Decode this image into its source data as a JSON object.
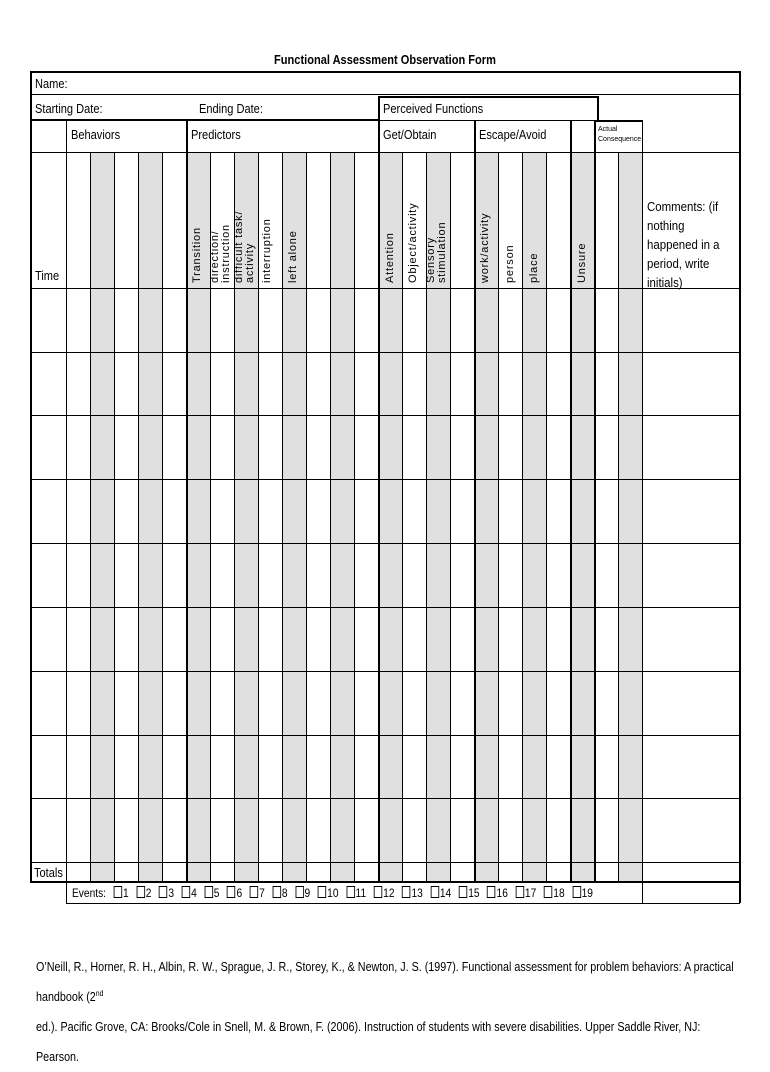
{
  "title": "Functional Assessment Observation Form",
  "name_label": "Name:",
  "starting_date_label": "Starting Date:",
  "ending_date_label": "Ending Date:",
  "perceived_functions_label": "Perceived Functions",
  "headers": {
    "behaviors": "Behaviors",
    "predictors": "Predictors",
    "get_obtain": "Get/Obtain",
    "escape_avoid": "Escape/Avoid",
    "actual_consequence": "Actual Consequence",
    "time": "Time",
    "comments": "Comments: (if nothing happened in a period, write initials)",
    "totals": "Totals"
  },
  "predictor_labels": [
    "Transition",
    "direction/\ninstruction",
    "difficult task/\nactivity",
    "interruption",
    "left alone"
  ],
  "get_labels": [
    "Attention",
    "Object/activity",
    "Sensory\nstimulation"
  ],
  "escape_labels": [
    "work/activity",
    "person",
    "place"
  ],
  "unsure_label": "Unsure",
  "events_label": "Events:",
  "events": [
    "1",
    "2",
    "3",
    "4",
    "5",
    "6",
    "7",
    "8",
    "9",
    "10",
    "11",
    "12",
    "13",
    "14",
    "15",
    "16",
    "17",
    "18",
    "19"
  ],
  "citation_line1": "O’Neill, R., Horner, R. H., Albin, R. W., Sprague, J. R., Storey, K., & Newton, J. S. (1997). Functional assessment for problem behaviors: A practical handbook (2",
  "citation_sup": "nd",
  "citation_line2": "ed.). Pacific Grove, CA: Brooks/Cole in Snell, M. & Brown, F. (2006). Instruction of students with severe disabilities. Upper Saddle River, NJ: Pearson."
}
